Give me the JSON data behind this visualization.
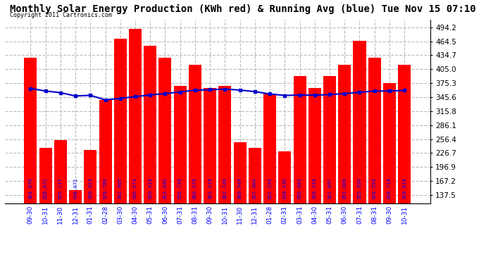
{
  "title": "Monthly Solar Energy Production (KWh red) & Running Avg (blue) Tue Nov 15 07:10",
  "copyright": "Copyright 2011 Cartronics.com",
  "categories": [
    "09-30",
    "10-31",
    "11-30",
    "12-31",
    "01-31",
    "02-28",
    "03-30",
    "04-30",
    "05-31",
    "06-30",
    "07-31",
    "08-31",
    "09-30",
    "10-31",
    "11-30",
    "12-31",
    "01-28",
    "02-31",
    "03-31",
    "04-30",
    "05-31",
    "06-30",
    "07-31",
    "08-31",
    "09-30",
    "10-31"
  ],
  "bar_values": [
    430.0,
    238.0,
    255.0,
    148.0,
    234.0,
    340.0,
    470.0,
    490.0,
    455.0,
    430.0,
    370.0,
    415.0,
    365.0,
    370.0,
    250.0,
    238.0,
    352.334,
    230.0,
    390.0,
    365.0,
    390.0,
    415.0,
    465.0,
    430.0,
    375.0,
    415.0
  ],
  "bar_labels": [
    "364.070",
    "358.672",
    "355.117",
    "348.071",
    "349.523",
    "339.789",
    "342.965",
    "346.573",
    "350.419",
    "353.046",
    "356.739",
    "360.279",
    "361.319",
    "362.749",
    "360.549",
    "357.404",
    "352.334",
    "349.236",
    "350.083",
    "349.740",
    "351.097",
    "353.009",
    "355.950",
    "358.559",
    "358.719",
    "359.819"
  ],
  "running_avg": [
    364.07,
    358.672,
    355.117,
    348.071,
    349.523,
    339.789,
    342.965,
    346.573,
    350.419,
    353.046,
    356.739,
    360.279,
    361.319,
    362.749,
    360.549,
    357.404,
    352.334,
    349.236,
    350.083,
    349.74,
    351.097,
    353.009,
    355.95,
    358.559,
    358.719,
    359.819
  ],
  "bar_color": "#ff0000",
  "line_color": "#0000cc",
  "background_color": "#ffffff",
  "grid_color": "#bbbbbb",
  "title_fontsize": 10,
  "yticks": [
    137.5,
    167.2,
    196.9,
    226.7,
    256.4,
    286.1,
    315.8,
    345.6,
    375.3,
    405.0,
    434.7,
    464.5,
    494.2
  ],
  "ylim": [
    120,
    510
  ]
}
